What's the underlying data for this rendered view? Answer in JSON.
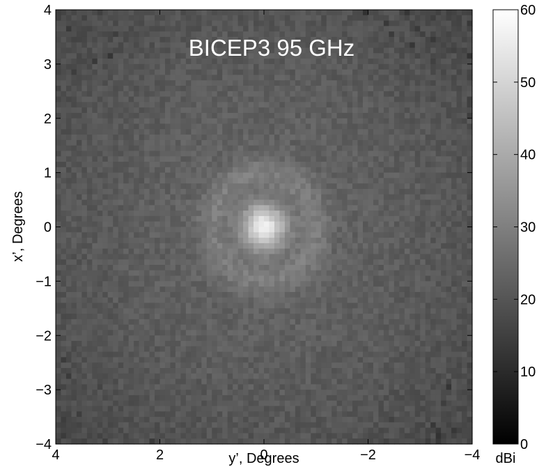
{
  "chart_data": {
    "type": "heatmap",
    "title": "BICEP3 95 GHz",
    "xlabel": "y’, Degrees",
    "ylabel": "x’, Degrees",
    "xlim": [
      4,
      -4
    ],
    "ylim": [
      -4,
      4
    ],
    "x_reversed": true,
    "x_ticks": [
      4,
      2,
      0,
      -2,
      -4
    ],
    "x_tick_labels": [
      "4",
      "2",
      "0",
      "−2",
      "−4"
    ],
    "y_ticks": [
      4,
      3,
      2,
      1,
      0,
      -1,
      -2,
      -3,
      -4
    ],
    "y_tick_labels": [
      "4",
      "3",
      "2",
      "1",
      "0",
      "−1",
      "−2",
      "−3",
      "−4"
    ],
    "colormap": "gray",
    "grid": false,
    "beam_model": {
      "description": "centrally peaked beam response; bright core near origin with faint ring near 1 degree radius",
      "center": [
        0,
        0
      ],
      "peak_dbi": 56,
      "core_sigma_deg": 0.3,
      "ring_radius_deg": 1.0,
      "background_dbi": 24,
      "edge_dbi": 17,
      "noise_dbi": 2.5
    },
    "grid_cells": 80,
    "colorbar": {
      "label": "dBi",
      "range": [
        0,
        60
      ],
      "ticks": [
        0,
        10,
        20,
        30,
        40,
        50,
        60
      ],
      "tick_labels": [
        "0",
        "10",
        "20",
        "30",
        "40",
        "50",
        "60"
      ]
    }
  }
}
